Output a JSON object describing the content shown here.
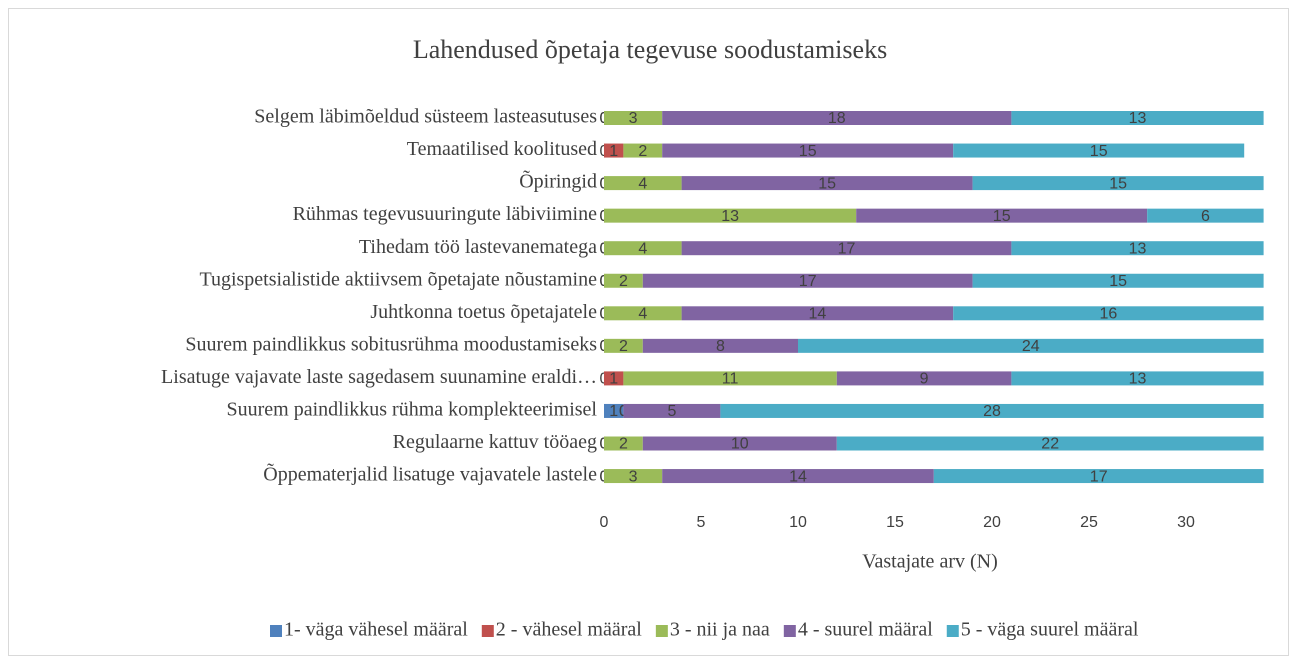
{
  "chart_data": {
    "type": "stacked_barh",
    "title": "Lahendused õpetaja tegevuse soodustamiseks",
    "x_label": "Vastajate arv (N)",
    "categories": [
      "Selgem läbimõeldud süsteem lasteasutuses",
      "Temaatilised koolitused",
      "Õpiringid",
      "Rühmas tegevusuuringute läbiviimine",
      "Tihedam töö lastevanematega",
      "Tugispetsialistide aktiivsem õpetajate nõustamine",
      "Juhtkonna toetus õpetajatele",
      "Suurem paindlikkus sobitusrühma moodustamiseks",
      "Lisatuge vajavate laste sagedasem suunamine eraldi…",
      "Suurem paindlikkus rühma komplekteerimisel",
      "Regulaarne kattuv tööaeg",
      "Õppematerjalid lisatuge vajavatele lastele"
    ],
    "series": [
      {
        "name": "1- väga vähesel määral",
        "color": "#4f81bd",
        "values": [
          0,
          0,
          0,
          0,
          0,
          0,
          0,
          0,
          0,
          1,
          0,
          0
        ]
      },
      {
        "name": "2 - vähesel määral",
        "color": "#c0504d",
        "values": [
          0,
          1,
          0,
          0,
          0,
          0,
          0,
          0,
          1,
          0,
          0,
          0
        ]
      },
      {
        "name": "3 - nii ja naa",
        "color": "#9bbb59",
        "values": [
          3,
          2,
          4,
          13,
          4,
          2,
          4,
          2,
          11,
          0,
          2,
          3
        ]
      },
      {
        "name": "4 - suurel määral",
        "color": "#8064a2",
        "values": [
          18,
          15,
          15,
          15,
          17,
          17,
          14,
          8,
          9,
          5,
          10,
          14
        ]
      },
      {
        "name": "5 - väga suurel määral",
        "color": "#4bacc6",
        "values": [
          13,
          15,
          15,
          6,
          13,
          15,
          16,
          24,
          13,
          28,
          22,
          17
        ]
      }
    ],
    "xlim": [
      0,
      34
    ],
    "xticks": [
      0,
      5,
      10,
      15,
      20,
      25,
      30
    ],
    "legend": "bottom"
  }
}
